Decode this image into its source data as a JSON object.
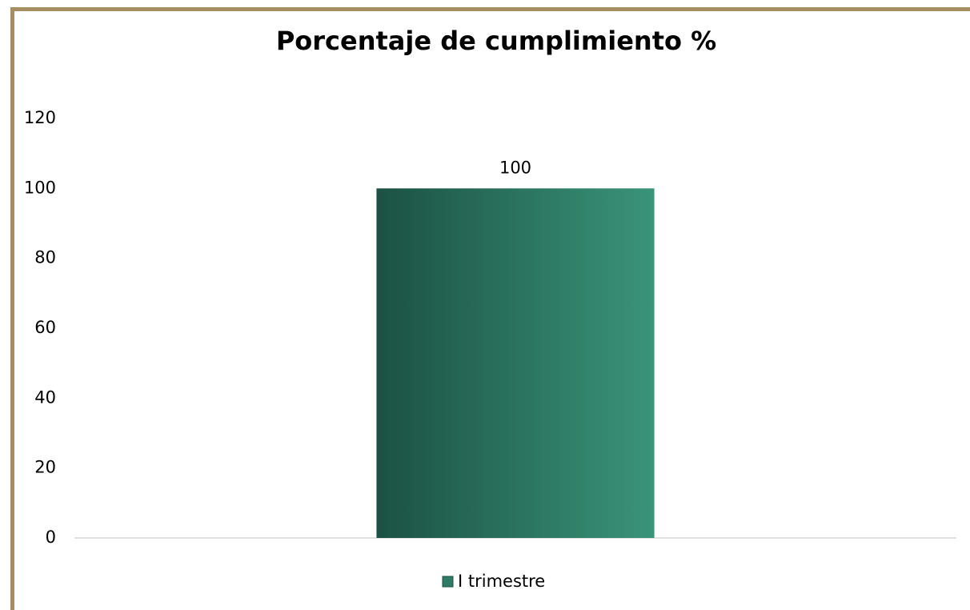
{
  "chart_data": {
    "type": "bar",
    "title": "Porcentaje de cumplimiento %",
    "categories": [
      null
    ],
    "series": [
      {
        "name": "I trimestre",
        "color": "#2e7a64",
        "values": [
          100
        ]
      }
    ],
    "ylim": [
      0,
      120
    ],
    "yticks": [
      0,
      20,
      40,
      60,
      80,
      100,
      120
    ],
    "grid": false,
    "legend": "bottom"
  }
}
